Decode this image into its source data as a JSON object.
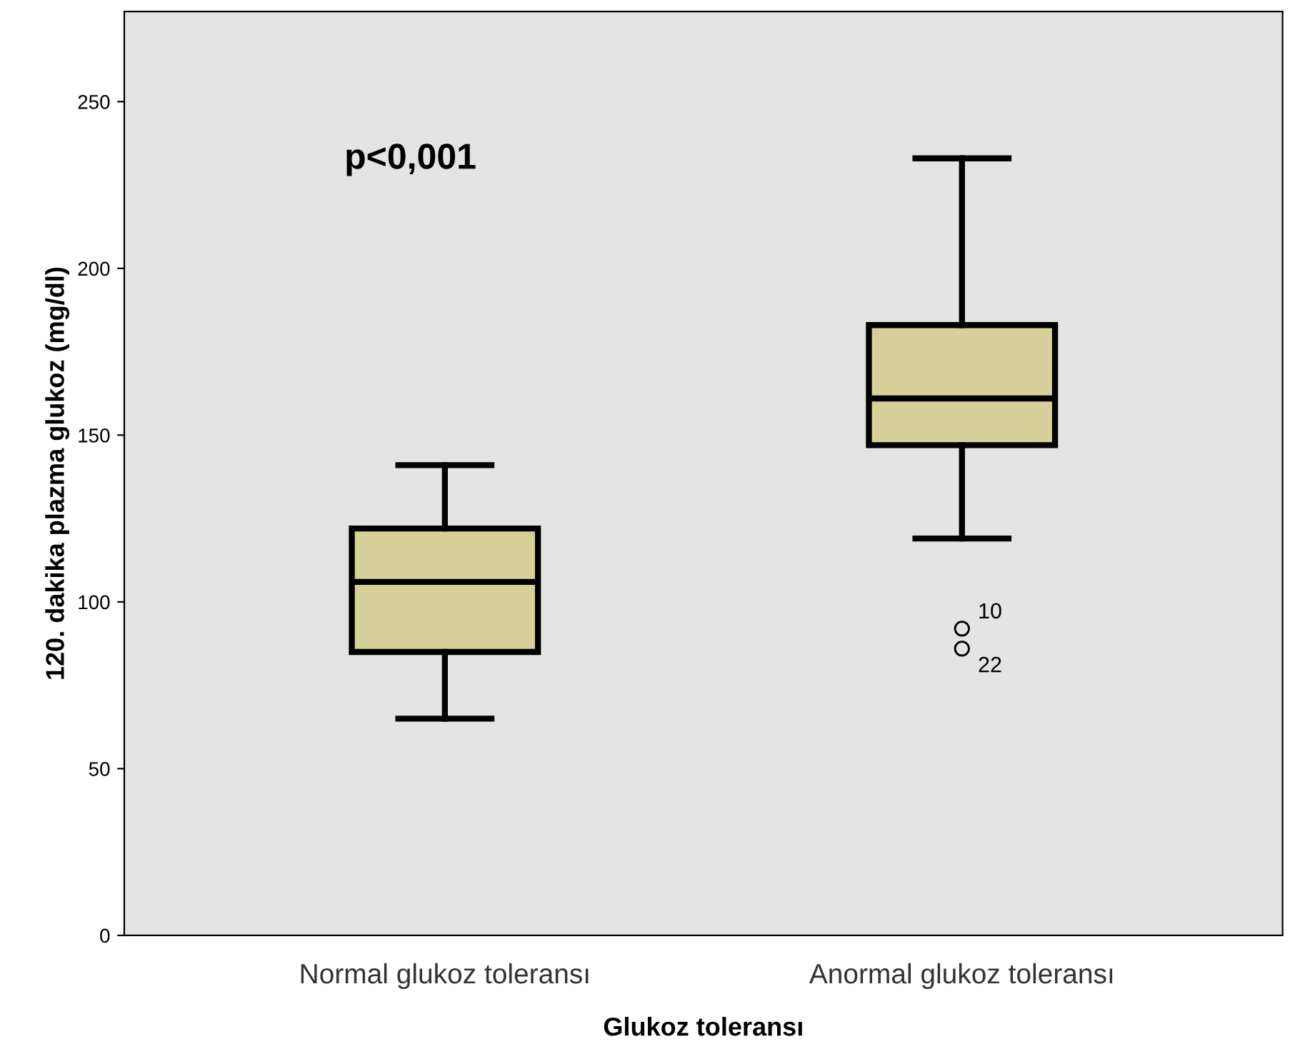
{
  "chart_data": {
    "type": "box",
    "xlabel": "Glukoz toleransı",
    "ylabel": "120. dakika plazma glukoz (mg/dl)",
    "categories": [
      "Normal glukoz toleransı",
      "Anormal glukoz toleransı"
    ],
    "boxes": [
      {
        "low": 65,
        "q1": 85,
        "median": 106,
        "q3": 122,
        "high": 141
      },
      {
        "low": 119,
        "q1": 147,
        "median": 161,
        "q3": 183,
        "high": 233,
        "outliers": [
          92,
          86
        ]
      }
    ],
    "color": "#d6d09b",
    "ylim": [
      0,
      277
    ],
    "yticks": [
      0,
      50,
      100,
      150,
      200,
      250
    ],
    "grid": false,
    "annotations": [
      "p<0,001",
      "10",
      "22"
    ]
  }
}
